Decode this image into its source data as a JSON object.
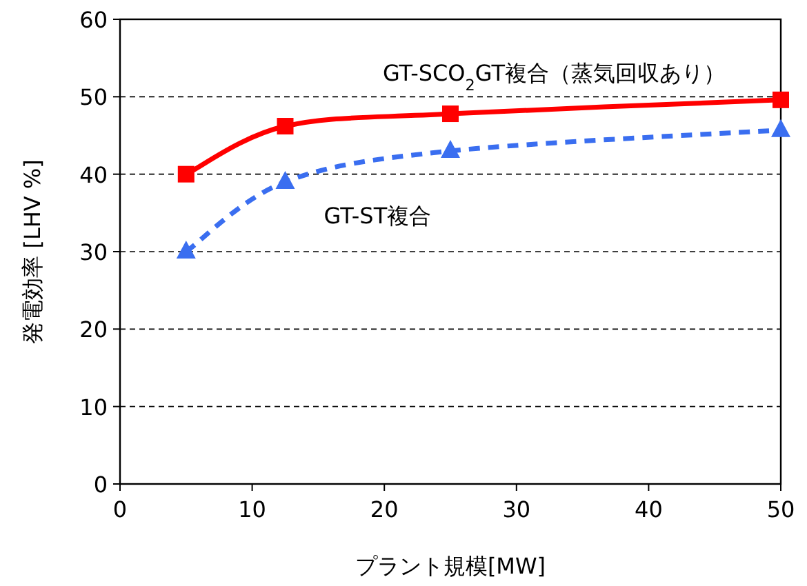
{
  "chart_data": {
    "type": "line",
    "xlabel": "プラント規模[MW]",
    "ylabel": "発電効率 [LHV %]",
    "xlim": [
      0,
      50
    ],
    "xticks": [
      0,
      10,
      20,
      30,
      40,
      50
    ],
    "ylim": [
      0,
      60
    ],
    "yticks": [
      0,
      10,
      20,
      30,
      40,
      50,
      60
    ],
    "grid": "y",
    "series": [
      {
        "name": "GT-SCO$_{2}$GT複合（蒸気回収あり）",
        "color": "#ff0000",
        "marker": "square",
        "line_style": "solid",
        "x": [
          5,
          12.5,
          25,
          50
        ],
        "values": [
          40,
          46.2,
          47.8,
          49.6
        ]
      },
      {
        "name": "GT-ST複合",
        "color": "#3a6ef0",
        "marker": "triangle",
        "line_style": "dashed",
        "x": [
          5,
          12.5,
          25,
          50
        ],
        "values": [
          30,
          39,
          43,
          45.7
        ]
      }
    ]
  }
}
